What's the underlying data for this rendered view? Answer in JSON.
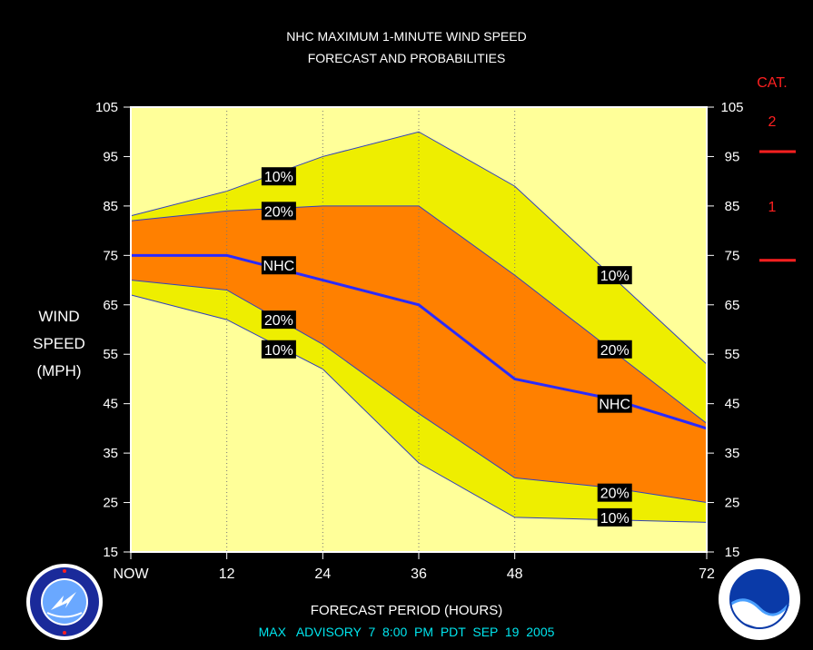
{
  "title_line1": "NHC MAXIMUM 1-MINUTE WIND SPEED",
  "title_line2": "FORECAST AND PROBABILITIES",
  "y_label": [
    "WIND",
    "SPEED",
    "(MPH)"
  ],
  "x_label": "FORECAST PERIOD (HOURS)",
  "advisory_text": "MAX   ADVISORY  7  8:00  PM  PDT  SEP  19  2005",
  "category_legend": {
    "title": "CAT.",
    "labels": [
      "2",
      "1"
    ],
    "color": "#ff2020"
  },
  "chart_data": {
    "type": "area",
    "title": "NHC MAXIMUM 1-MINUTE WIND SPEED FORECAST AND PROBABILITIES",
    "xlabel": "FORECAST PERIOD (HOURS)",
    "ylabel": "WIND SPEED (MPH)",
    "xlim": [
      0,
      72
    ],
    "ylim": [
      15,
      105
    ],
    "x_ticks": [
      0,
      12,
      24,
      36,
      48,
      72
    ],
    "x_tick_labels": [
      "NOW",
      "12",
      "24",
      "36",
      "48",
      "72"
    ],
    "y_ticks": [
      15,
      25,
      35,
      45,
      55,
      65,
      75,
      85,
      95,
      105
    ],
    "colors": {
      "band10": "#eeee00",
      "band20": "#ff8000",
      "nhc_line": "#2a2aff",
      "background": "#ffff99"
    },
    "series": [
      {
        "name": "10%",
        "x": [
          0,
          12,
          24,
          36,
          48,
          60,
          72
        ],
        "values": [
          83,
          88,
          95,
          100,
          89,
          71,
          53
        ],
        "bound": "upper"
      },
      {
        "name": "20%",
        "x": [
          0,
          12,
          24,
          36,
          48,
          60,
          72
        ],
        "values": [
          82,
          84,
          85,
          85,
          71,
          56,
          41
        ],
        "bound": "upper"
      },
      {
        "name": "NHC",
        "x": [
          0,
          12,
          24,
          36,
          48,
          60,
          72
        ],
        "values": [
          75,
          75,
          70,
          65,
          50,
          46,
          40
        ]
      },
      {
        "name": "20%",
        "x": [
          0,
          12,
          24,
          36,
          48,
          60,
          72
        ],
        "values": [
          70,
          68,
          57,
          43,
          30,
          28,
          25
        ],
        "bound": "lower"
      },
      {
        "name": "10%",
        "x": [
          0,
          12,
          24,
          36,
          48,
          60,
          72
        ],
        "values": [
          67,
          62,
          52,
          33,
          22,
          21.5,
          21
        ],
        "bound": "lower"
      }
    ],
    "annotations": [
      {
        "text": "10%",
        "x": 16,
        "y": 91
      },
      {
        "text": "20%",
        "x": 16,
        "y": 84
      },
      {
        "text": "NHC",
        "x": 16,
        "y": 73
      },
      {
        "text": "20%",
        "x": 16,
        "y": 62
      },
      {
        "text": "10%",
        "x": 16,
        "y": 56
      },
      {
        "text": "10%",
        "x": 58,
        "y": 71
      },
      {
        "text": "20%",
        "x": 58,
        "y": 56
      },
      {
        "text": "NHC",
        "x": 58,
        "y": 45
      },
      {
        "text": "20%",
        "x": 58,
        "y": 27
      },
      {
        "text": "10%",
        "x": 58,
        "y": 22
      }
    ]
  }
}
